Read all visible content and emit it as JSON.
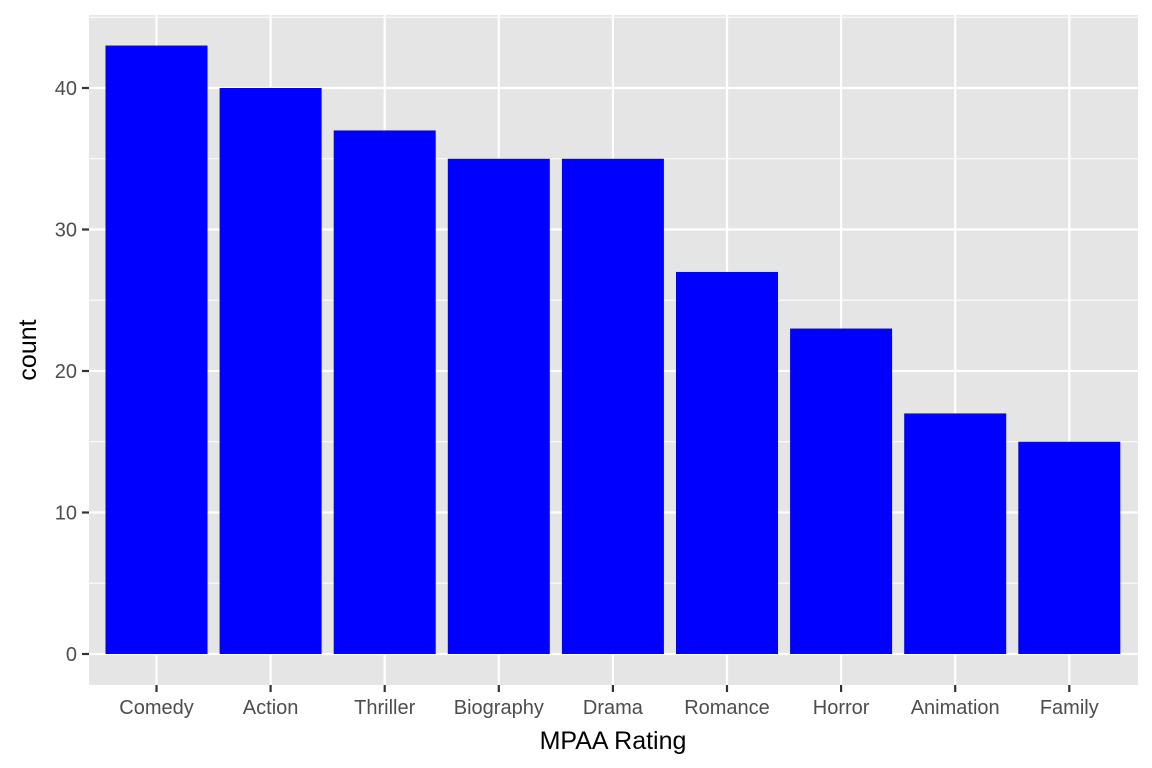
{
  "chart_data": {
    "type": "bar",
    "title": "",
    "xlabel": "MPAA Rating",
    "ylabel": "count",
    "categories": [
      "Comedy",
      "Action",
      "Thriller",
      "Biography",
      "Drama",
      "Romance",
      "Horror",
      "Animation",
      "Family"
    ],
    "values": [
      43,
      40,
      37,
      35,
      35,
      27,
      23,
      17,
      15
    ],
    "ylim": [
      0,
      45
    ],
    "yticks": [
      0,
      10,
      20,
      30,
      40
    ],
    "grid": true,
    "legend": "none",
    "colors": {
      "bar": "#0000ff",
      "panel": "#e5e5e5",
      "grid": "#ffffff"
    }
  }
}
